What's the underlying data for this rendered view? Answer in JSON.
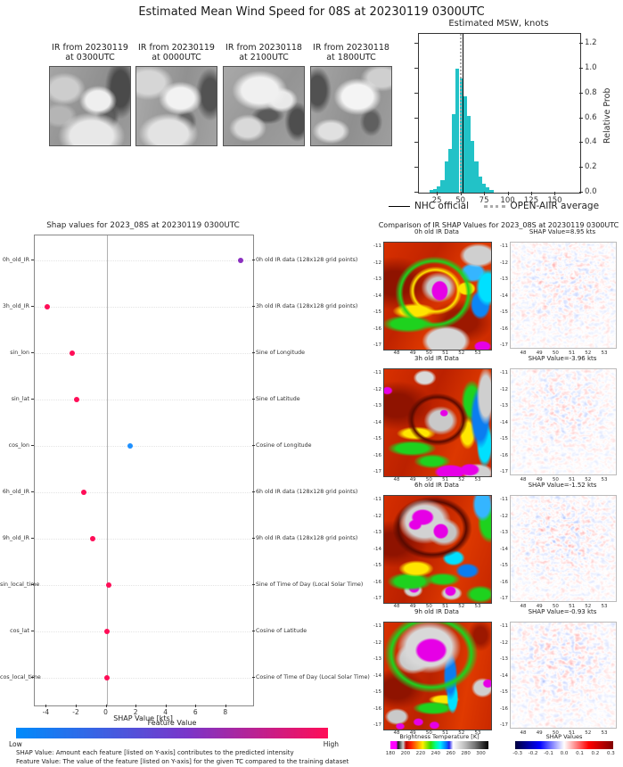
{
  "page_title": "Estimated Mean Wind Speed for 08S at 20230119 0300UTC",
  "ir_thumbnails": {
    "items": [
      {
        "line1": "IR from 20230119",
        "line2": "at 0300UTC"
      },
      {
        "line1": "IR from 20230119",
        "line2": "at 0000UTC"
      },
      {
        "line1": "IR from 20230118",
        "line2": "at 2100UTC"
      },
      {
        "line1": "IR from 20230118",
        "line2": "at 1800UTC"
      }
    ]
  },
  "histogram": {
    "title": "Estimated MSW, knots",
    "ylabel": "Relative Prob",
    "legend": [
      {
        "label": "NHC official",
        "style": "solid",
        "color": "#000000"
      },
      {
        "label": "OPEN-AIIR average",
        "style": "dotted",
        "color": "#ababab"
      }
    ]
  },
  "shap_plot": {
    "title": "Shap values for 2023_08S at 20230119 0300UTC",
    "xlabel": "SHAP Value [kts]",
    "colorbar_title": "Feature Value",
    "colorbar_low": "Low",
    "colorbar_high": "High",
    "footnote1": "SHAP Value: Amount each feature [listed on Y-axis] contributes to the predicted intensity",
    "footnote2": "Feature Value: The value of the feature [listed on Y-axis] for the given TC compared to the training dataset"
  },
  "comparison": {
    "title": "Comparison of IR SHAP Values for 2023_08S at 20230119 0300UTC",
    "rows": [
      {
        "ir_title": "0h old IR Data",
        "shap_title": "SHAP Value=8.95 kts",
        "shap_value_kts": 8.95
      },
      {
        "ir_title": "3h old IR Data",
        "shap_title": "SHAP Value=-3.96 kts",
        "shap_value_kts": -3.96
      },
      {
        "ir_title": "6h old IR Data",
        "shap_title": "SHAP Value=-1.52 kts",
        "shap_value_kts": -1.52
      },
      {
        "ir_title": "9h old IR Data",
        "shap_title": "SHAP Value=-0.93 kts",
        "shap_value_kts": -0.93
      }
    ],
    "map_y_ticks": [
      -11,
      -12,
      -13,
      -14,
      -15,
      -16,
      -17
    ],
    "map_x_ticks": [
      48,
      49,
      50,
      51,
      52,
      53
    ],
    "bt_colorbar": {
      "title": "Brightness Temperature [K]",
      "ticks": [
        "180",
        "200",
        "220",
        "240",
        "260",
        "280",
        "300"
      ],
      "range": [
        180,
        310
      ]
    },
    "shap_colorbar": {
      "title": "SHAP Values",
      "ticks": [
        "-0.3",
        "-0.2",
        "-0.1",
        "0.0",
        "0.1",
        "0.2",
        "0.3"
      ],
      "range": [
        -0.315,
        0.315
      ]
    }
  },
  "chart_data": [
    {
      "type": "bar",
      "title": "Estimated MSW, knots",
      "xlabel": "",
      "ylabel": "Relative Prob",
      "bins_start": 16,
      "bin_width": 4,
      "values": [
        0.02,
        0.03,
        0.05,
        0.1,
        0.25,
        0.35,
        0.63,
        1.0,
        0.92,
        0.78,
        0.62,
        0.42,
        0.25,
        0.13,
        0.07,
        0.04,
        0.02
      ],
      "xlim": [
        5,
        176
      ],
      "ylim": [
        0,
        1.28
      ],
      "x_ticks": [
        "25",
        "50",
        "75",
        "100",
        "125",
        "150"
      ],
      "y_ticks": [
        "0.0",
        "0.2",
        "0.4",
        "0.6",
        "0.8",
        "1.0",
        "1.2"
      ],
      "bar_color": "#22c2c7",
      "grid": false,
      "legend_position": "below",
      "vlines": [
        {
          "name": "NHC official",
          "x": 51,
          "color": "#000000",
          "style": "solid"
        },
        {
          "name": "OPEN-AIIR average",
          "x": 48,
          "color": "#ababab",
          "style": "dotted"
        }
      ]
    },
    {
      "type": "scatter",
      "title": "Shap values for 2023_08S at 20230119 0300UTC",
      "xlabel": "SHAP Value [kts]",
      "xlim": [
        -4.8,
        9.8
      ],
      "x_ticks": [
        "-4",
        "-2",
        "0",
        "2",
        "4",
        "6",
        "8"
      ],
      "colorbar": {
        "title": "Feature Value",
        "low": "Low",
        "high": "High",
        "low_color": "#008bfb",
        "high_color": "#ff0d57"
      },
      "points": [
        {
          "feature": "0h_old_IR",
          "description": "0h old IR data (128x128 grid points)",
          "shap_kts": 8.95,
          "dot_color": "#8b2fc0"
        },
        {
          "feature": "3h_old_IR",
          "description": "3h old IR data (128x128 grid points)",
          "shap_kts": -3.96,
          "dot_color": "#ff0d57"
        },
        {
          "feature": "sin_lon",
          "description": "Sine of Longitude",
          "shap_kts": -2.3,
          "dot_color": "#ff0d57"
        },
        {
          "feature": "sin_lat",
          "description": "Sine of Latitude",
          "shap_kts": -2.0,
          "dot_color": "#ff0d57"
        },
        {
          "feature": "cos_lon",
          "description": "Cosine of Longitude",
          "shap_kts": 1.6,
          "dot_color": "#1e90ff"
        },
        {
          "feature": "6h_old_IR",
          "description": "6h old IR data (128x128 grid points)",
          "shap_kts": -1.52,
          "dot_color": "#ff0d57"
        },
        {
          "feature": "9h_old_IR",
          "description": "9h old IR data (128x128 grid points)",
          "shap_kts": -0.93,
          "dot_color": "#ff0d57"
        },
        {
          "feature": "sin_local_time",
          "description": "Sine of Time of Day (Local Solar Time)",
          "shap_kts": 0.16,
          "dot_color": "#ff0d57"
        },
        {
          "feature": "cos_lat",
          "description": "Cosine of Latitude",
          "shap_kts": 0.05,
          "dot_color": "#ff0d57"
        },
        {
          "feature": "cos_local_time",
          "description": "Cosine of Time of Day (Local Solar Time)",
          "shap_kts": 0.02,
          "dot_color": "#ff0d57"
        }
      ]
    }
  ]
}
